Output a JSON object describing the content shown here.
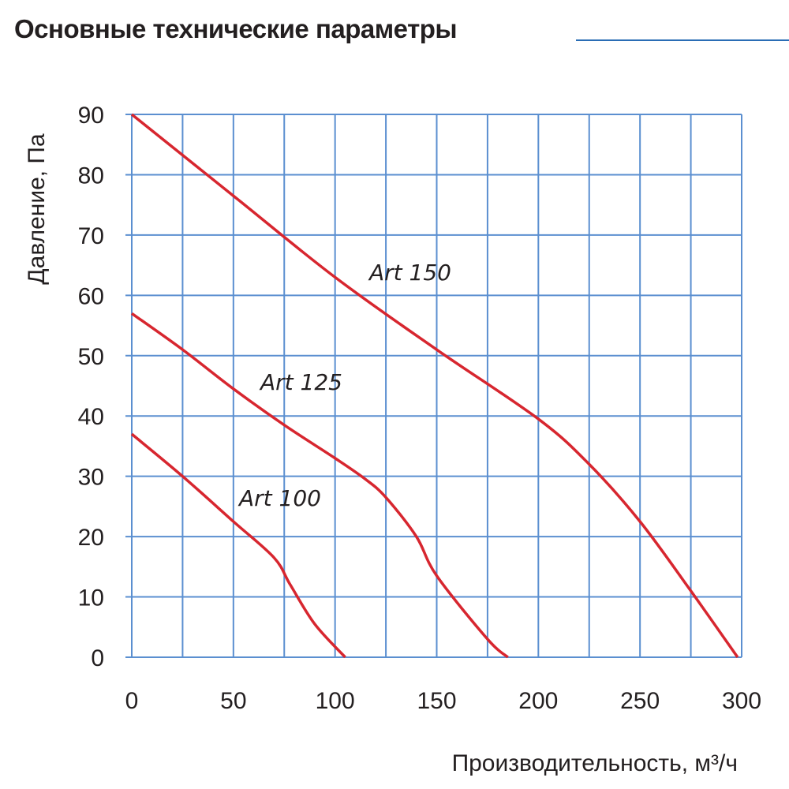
{
  "title": "Основные технические параметры",
  "chart_data": {
    "type": "line",
    "xlabel": "Производительность, м³/ч",
    "ylabel": "Давление, Па",
    "xlim": [
      0,
      300
    ],
    "ylim": [
      0,
      90
    ],
    "x_ticks": [
      0,
      50,
      100,
      150,
      200,
      250,
      300
    ],
    "y_ticks": [
      0,
      10,
      20,
      30,
      40,
      50,
      60,
      70,
      80,
      90
    ],
    "x_grid_step": 25,
    "y_grid_step": 10,
    "grid": true,
    "grid_color": "#5b8fd0",
    "line_color": "#d7262f",
    "series": [
      {
        "name": "Art 150",
        "points": [
          [
            0,
            90
          ],
          [
            50,
            76.5
          ],
          [
            100,
            63
          ],
          [
            150,
            51
          ],
          [
            200,
            39.5
          ],
          [
            225,
            32
          ],
          [
            250,
            22.5
          ],
          [
            275,
            11
          ],
          [
            298,
            0
          ]
        ]
      },
      {
        "name": "Art 125",
        "points": [
          [
            0,
            57
          ],
          [
            25,
            51
          ],
          [
            50,
            44.5
          ],
          [
            75,
            38.5
          ],
          [
            100,
            33
          ],
          [
            115,
            29.5
          ],
          [
            125,
            26.5
          ],
          [
            140,
            20
          ],
          [
            150,
            13.5
          ],
          [
            175,
            3
          ],
          [
            185,
            0
          ]
        ]
      },
      {
        "name": "Art 100",
        "points": [
          [
            0,
            37
          ],
          [
            25,
            30
          ],
          [
            50,
            22.5
          ],
          [
            70,
            16.5
          ],
          [
            78,
            12
          ],
          [
            90,
            5.5
          ],
          [
            105,
            0
          ]
        ]
      }
    ]
  }
}
